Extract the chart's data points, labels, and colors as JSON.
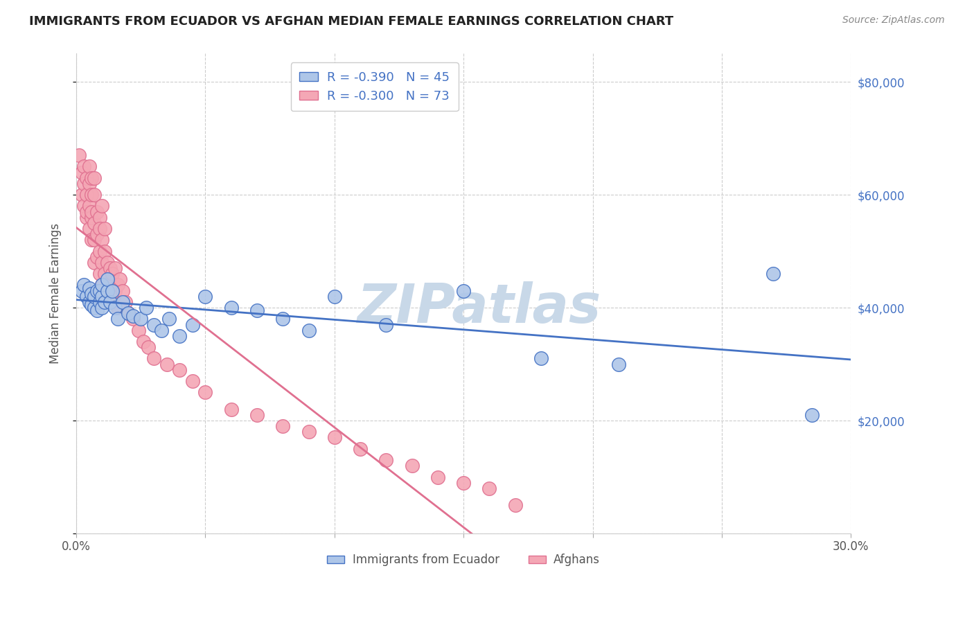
{
  "title": "IMMIGRANTS FROM ECUADOR VS AFGHAN MEDIAN FEMALE EARNINGS CORRELATION CHART",
  "source": "Source: ZipAtlas.com",
  "ylabel": "Median Female Earnings",
  "xlim": [
    0.0,
    0.3
  ],
  "ylim": [
    0,
    85000
  ],
  "yticks": [
    0,
    20000,
    40000,
    60000,
    80000
  ],
  "ytick_labels": [
    "",
    "$20,000",
    "$40,000",
    "$60,000",
    "$80,000"
  ],
  "xticks": [
    0.0,
    0.05,
    0.1,
    0.15,
    0.2,
    0.25,
    0.3
  ],
  "xtick_labels": [
    "0.0%",
    "",
    "",
    "",
    "",
    "",
    "30.0%"
  ],
  "legend_label1": "R = -0.390   N = 45",
  "legend_label2": "R = -0.300   N = 73",
  "legend_label_bottom1": "Immigrants from Ecuador",
  "legend_label_bottom2": "Afghans",
  "color_ecuador": "#aec6e8",
  "color_afghan": "#f4a7b5",
  "color_line_ecuador": "#4472c4",
  "color_line_afghan": "#e07090",
  "watermark": "ZIPatlas",
  "watermark_color": "#c8d8e8",
  "axis_color": "#4472c4",
  "ecuador_x": [
    0.002,
    0.003,
    0.004,
    0.005,
    0.005,
    0.006,
    0.006,
    0.007,
    0.007,
    0.008,
    0.008,
    0.009,
    0.009,
    0.01,
    0.01,
    0.01,
    0.011,
    0.012,
    0.012,
    0.013,
    0.014,
    0.015,
    0.016,
    0.018,
    0.02,
    0.022,
    0.025,
    0.027,
    0.03,
    0.033,
    0.036,
    0.04,
    0.045,
    0.05,
    0.06,
    0.07,
    0.08,
    0.09,
    0.1,
    0.12,
    0.15,
    0.18,
    0.21,
    0.27,
    0.285
  ],
  "ecuador_y": [
    43000,
    44000,
    42000,
    41000,
    43500,
    40500,
    42500,
    40000,
    42000,
    39500,
    43000,
    41000,
    43000,
    40000,
    42000,
    44000,
    41000,
    43000,
    45000,
    41000,
    43000,
    40000,
    38000,
    41000,
    39000,
    38500,
    38000,
    40000,
    37000,
    36000,
    38000,
    35000,
    37000,
    42000,
    40000,
    39500,
    38000,
    36000,
    42000,
    37000,
    43000,
    31000,
    30000,
    46000,
    21000
  ],
  "afghan_x": [
    0.001,
    0.002,
    0.002,
    0.003,
    0.003,
    0.003,
    0.004,
    0.004,
    0.004,
    0.004,
    0.005,
    0.005,
    0.005,
    0.005,
    0.006,
    0.006,
    0.006,
    0.006,
    0.006,
    0.007,
    0.007,
    0.007,
    0.007,
    0.007,
    0.008,
    0.008,
    0.008,
    0.009,
    0.009,
    0.009,
    0.009,
    0.01,
    0.01,
    0.01,
    0.01,
    0.011,
    0.011,
    0.011,
    0.012,
    0.012,
    0.013,
    0.013,
    0.014,
    0.014,
    0.015,
    0.015,
    0.016,
    0.016,
    0.017,
    0.018,
    0.019,
    0.02,
    0.022,
    0.024,
    0.026,
    0.028,
    0.03,
    0.035,
    0.04,
    0.045,
    0.05,
    0.06,
    0.07,
    0.08,
    0.09,
    0.1,
    0.11,
    0.12,
    0.13,
    0.14,
    0.15,
    0.16,
    0.17
  ],
  "afghan_y": [
    67000,
    64000,
    60000,
    62000,
    58000,
    65000,
    60000,
    56000,
    63000,
    57000,
    62000,
    58000,
    54000,
    65000,
    60000,
    56000,
    52000,
    63000,
    57000,
    55000,
    60000,
    52000,
    48000,
    63000,
    57000,
    53000,
    49000,
    56000,
    50000,
    46000,
    54000,
    52000,
    48000,
    44000,
    58000,
    50000,
    46000,
    54000,
    48000,
    44000,
    47000,
    43000,
    46000,
    42000,
    47000,
    43000,
    44000,
    40000,
    45000,
    43000,
    41000,
    39000,
    38000,
    36000,
    34000,
    33000,
    31000,
    30000,
    29000,
    27000,
    25000,
    22000,
    21000,
    19000,
    18000,
    17000,
    15000,
    13000,
    12000,
    10000,
    9000,
    8000,
    5000
  ]
}
